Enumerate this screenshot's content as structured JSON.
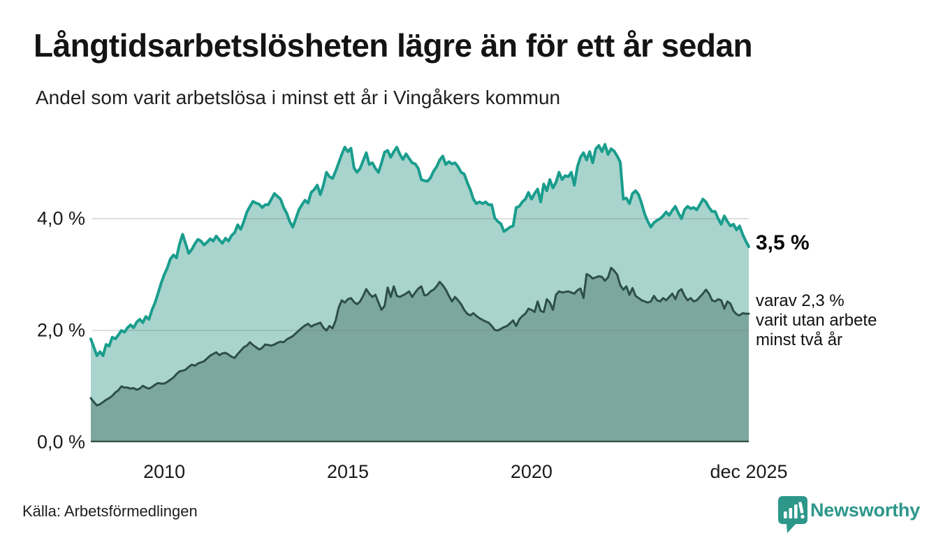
{
  "header": {
    "title": "Långtidsarbetslösheten lägre än för ett år sedan",
    "subtitle": "Andel som varit arbetslösa i minst ett år i Vingåkers kommun"
  },
  "annotations": {
    "latest_total": "3,5 %",
    "two_year_lines": [
      "varav 2,3 %",
      "varit utan arbete",
      "minst två år"
    ]
  },
  "axes": {
    "y_ticks": [
      {
        "label": "4,0 %",
        "value": 4.0,
        "gridline": true
      },
      {
        "label": "2,0 %",
        "value": 2.0,
        "gridline": true
      },
      {
        "label": "0,0 %",
        "value": 0.0,
        "gridline": false
      }
    ],
    "x_ticks": [
      {
        "label": "2010",
        "year": 2010
      },
      {
        "label": "2015",
        "year": 2015
      },
      {
        "label": "2020",
        "year": 2020
      },
      {
        "label": "dec 2025",
        "year": 2025.9167
      }
    ]
  },
  "footer": {
    "source": "Källa: Arbetsförmedlingen",
    "brand": "Newsworthy"
  },
  "colors": {
    "brand_teal": "#2d978a",
    "grid": "rgba(120,120,120,0.25)",
    "baseline": "#37534c"
  },
  "chart_data": {
    "type": "area",
    "title": "Långtidsarbetslösheten lägre än för ett år sedan",
    "subtitle": "Andel som varit arbetslösa i minst ett år i Vingåkers kommun",
    "x_range": [
      2008.0,
      2025.9167
    ],
    "ylim": [
      0,
      5.6
    ],
    "grid": "horizontal",
    "legend_position": "right-annotations",
    "series": [
      {
        "name": "Arbetslösa minst ett år",
        "end_label": "3,5 %",
        "line_color": "#1a9d8d",
        "fill_color": "#a8d4cd",
        "values": [
          1.85,
          1.7,
          1.55,
          1.62,
          1.55,
          1.75,
          1.72,
          1.88,
          1.85,
          1.92,
          2.0,
          1.97,
          2.05,
          2.1,
          2.05,
          2.15,
          2.2,
          2.14,
          2.25,
          2.2,
          2.37,
          2.5,
          2.67,
          2.85,
          3.0,
          3.12,
          3.28,
          3.35,
          3.3,
          3.55,
          3.72,
          3.55,
          3.38,
          3.45,
          3.55,
          3.63,
          3.6,
          3.53,
          3.58,
          3.64,
          3.6,
          3.69,
          3.62,
          3.56,
          3.65,
          3.6,
          3.7,
          3.75,
          3.89,
          3.81,
          3.95,
          4.12,
          4.22,
          4.31,
          4.28,
          4.26,
          4.2,
          4.25,
          4.25,
          4.35,
          4.45,
          4.4,
          4.35,
          4.2,
          4.1,
          3.95,
          3.85,
          4.0,
          4.16,
          4.25,
          4.33,
          4.28,
          4.47,
          4.52,
          4.6,
          4.43,
          4.6,
          4.83,
          4.75,
          4.72,
          4.85,
          5.0,
          5.15,
          5.28,
          5.2,
          5.26,
          4.91,
          4.83,
          4.9,
          5.04,
          5.18,
          4.97,
          5.0,
          4.9,
          4.83,
          5.0,
          5.19,
          5.22,
          5.1,
          5.2,
          5.28,
          5.15,
          5.06,
          5.16,
          5.08,
          5.0,
          4.98,
          4.9,
          4.7,
          4.68,
          4.67,
          4.73,
          4.85,
          4.93,
          5.05,
          5.12,
          4.97,
          5.02,
          4.98,
          5.0,
          4.93,
          4.83,
          4.8,
          4.65,
          4.52,
          4.35,
          4.27,
          4.3,
          4.27,
          4.3,
          4.25,
          4.25,
          4.01,
          3.95,
          3.91,
          3.77,
          3.81,
          3.85,
          3.87,
          4.2,
          4.22,
          4.3,
          4.35,
          4.47,
          4.35,
          4.45,
          4.53,
          4.3,
          4.62,
          4.5,
          4.7,
          4.55,
          4.65,
          4.83,
          4.7,
          4.77,
          4.75,
          4.83,
          4.6,
          4.93,
          5.1,
          5.18,
          5.05,
          5.2,
          5.0,
          5.25,
          5.31,
          5.2,
          5.33,
          5.15,
          5.25,
          5.21,
          5.12,
          5.01,
          4.35,
          4.37,
          4.27,
          4.45,
          4.5,
          4.43,
          4.27,
          4.08,
          3.95,
          3.85,
          3.93,
          3.97,
          4.0,
          4.05,
          4.12,
          4.06,
          4.15,
          4.22,
          4.1,
          4.0,
          4.16,
          4.22,
          4.18,
          4.2,
          4.16,
          4.25,
          4.35,
          4.3,
          4.2,
          4.13,
          4.13,
          4.0,
          3.9,
          4.05,
          3.95,
          3.87,
          3.9,
          3.8,
          3.87,
          3.72,
          3.6,
          3.5
        ]
      },
      {
        "name": "Arbetslösa minst två år",
        "end_label": "varav 2,3 %",
        "line_color": "#2e4f48",
        "fill_color": "#7ba79e",
        "values": [
          0.79,
          0.72,
          0.66,
          0.68,
          0.72,
          0.76,
          0.79,
          0.83,
          0.89,
          0.93,
          1.0,
          0.98,
          0.98,
          0.96,
          0.97,
          0.94,
          0.96,
          1.01,
          0.98,
          0.96,
          0.99,
          1.03,
          1.06,
          1.05,
          1.05,
          1.08,
          1.12,
          1.16,
          1.22,
          1.27,
          1.28,
          1.3,
          1.35,
          1.39,
          1.37,
          1.41,
          1.43,
          1.45,
          1.5,
          1.55,
          1.58,
          1.61,
          1.56,
          1.59,
          1.6,
          1.57,
          1.53,
          1.51,
          1.58,
          1.64,
          1.7,
          1.73,
          1.79,
          1.74,
          1.7,
          1.66,
          1.69,
          1.75,
          1.74,
          1.73,
          1.75,
          1.78,
          1.8,
          1.79,
          1.84,
          1.87,
          1.9,
          1.95,
          2.0,
          2.05,
          2.09,
          2.12,
          2.07,
          2.1,
          2.12,
          2.14,
          2.05,
          2.0,
          2.08,
          2.04,
          2.18,
          2.41,
          2.54,
          2.5,
          2.56,
          2.58,
          2.51,
          2.47,
          2.52,
          2.62,
          2.74,
          2.66,
          2.6,
          2.64,
          2.5,
          2.37,
          2.44,
          2.77,
          2.6,
          2.79,
          2.62,
          2.6,
          2.63,
          2.66,
          2.7,
          2.6,
          2.68,
          2.75,
          2.79,
          2.63,
          2.64,
          2.7,
          2.73,
          2.79,
          2.87,
          2.81,
          2.73,
          2.62,
          2.52,
          2.6,
          2.54,
          2.47,
          2.37,
          2.3,
          2.27,
          2.31,
          2.26,
          2.22,
          2.19,
          2.16,
          2.14,
          2.08,
          2.01,
          2.0,
          2.03,
          2.06,
          2.08,
          2.13,
          2.18,
          2.08,
          2.2,
          2.26,
          2.3,
          2.39,
          2.37,
          2.33,
          2.52,
          2.35,
          2.33,
          2.56,
          2.5,
          2.37,
          2.64,
          2.7,
          2.68,
          2.69,
          2.7,
          2.68,
          2.66,
          2.72,
          2.75,
          2.58,
          3.01,
          2.98,
          2.93,
          2.95,
          2.97,
          2.96,
          2.89,
          2.95,
          3.12,
          3.07,
          3.0,
          2.81,
          2.73,
          2.79,
          2.64,
          2.76,
          2.62,
          2.58,
          2.54,
          2.52,
          2.5,
          2.52,
          2.62,
          2.54,
          2.52,
          2.58,
          2.54,
          2.6,
          2.66,
          2.56,
          2.7,
          2.74,
          2.62,
          2.54,
          2.58,
          2.52,
          2.54,
          2.6,
          2.66,
          2.73,
          2.66,
          2.54,
          2.52,
          2.56,
          2.54,
          2.39,
          2.52,
          2.48,
          2.35,
          2.29,
          2.27,
          2.31,
          2.3,
          2.3
        ]
      }
    ]
  }
}
